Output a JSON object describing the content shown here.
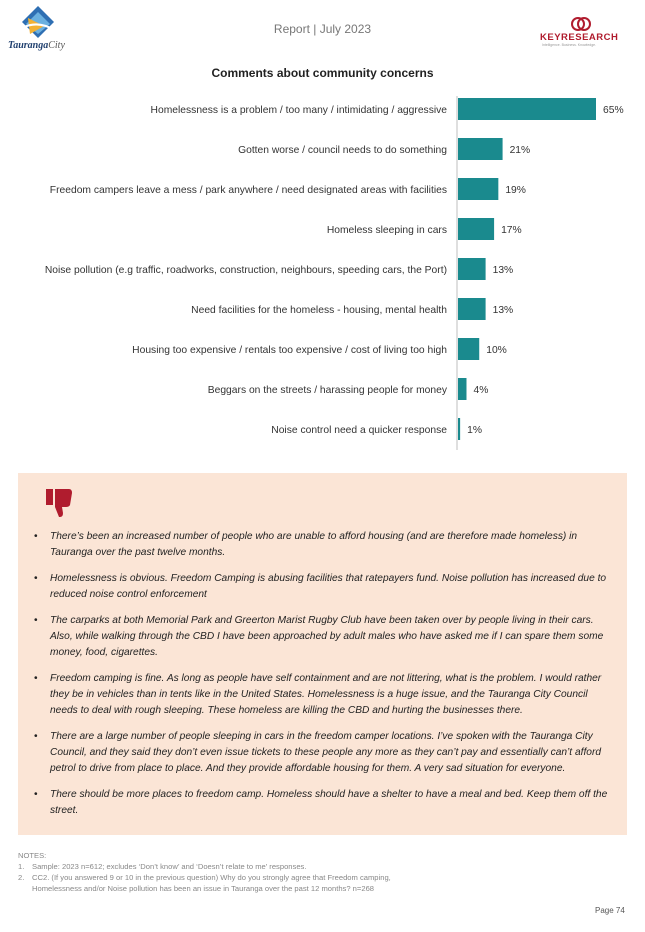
{
  "header": {
    "logo_text_main": "Tauranga",
    "logo_text_sub": "City",
    "report_label": "Report | July 2023",
    "brand_name": "KEYRESEARCH",
    "brand_tagline": "Intelligence. Business. Knowledge."
  },
  "colors": {
    "bar": "#1a8a8e",
    "panel_bg": "#fbe5d6",
    "thumb": "#b01c2e"
  },
  "chart_data": {
    "type": "bar",
    "orientation": "horizontal",
    "title": "Comments about community concerns",
    "categories": [
      "Homelessness is a problem / too many / intimidating / aggressive",
      "Gotten worse / council needs to do something",
      "Freedom campers leave a mess / park anywhere / need designated areas with facilities",
      "Homeless sleeping in cars",
      "Noise pollution (e.g traffic, roadworks, construction, neighbours, speeding cars, the Port)",
      "Need facilities for the homeless - housing, mental health",
      "Housing too expensive / rentals too expensive / cost of living too high",
      "Beggars on the streets / harassing people for money",
      "Noise control need a quicker response"
    ],
    "values": [
      65,
      21,
      19,
      17,
      13,
      13,
      10,
      4,
      1
    ],
    "value_labels": [
      "65%",
      "21%",
      "19%",
      "17%",
      "13%",
      "13%",
      "10%",
      "4%",
      "1%"
    ],
    "xlim": [
      0,
      70
    ],
    "grid": false,
    "legend": "none"
  },
  "comments": [
    "There’s been an increased number of people who are unable to afford housing (and are therefore made homeless) in Tauranga over the past twelve months.",
    "Homelessness is obvious. Freedom Camping is abusing facilities that ratepayers fund. Noise pollution has increased due to reduced noise control enforcement",
    "The carparks at both Memorial Park and Greerton Marist Rugby Club have been taken over by people living in their cars. Also, while walking through the CBD I have been approached by adult males who have asked me if I can spare them some money, food, cigarettes.",
    "Freedom camping is fine. As long as people have self containment and are not littering, what is the problem. I would rather they be in vehicles than in tents like in the United States. Homelessness is a huge issue, and the Tauranga City Council needs to deal with rough sleeping. These homeless are killing the CBD and hurting the businesses there.",
    "There are a large number of people sleeping in cars in the freedom camper locations. I’ve spoken with the Tauranga City Council, and they said they don’t even issue tickets to these people any more as they can’t pay and essentially can’t afford petrol to drive from place to place. And they provide affordable housing for them. A very sad situation for everyone.",
    "There should be more places to freedom camp. Homeless should have a shelter to have a meal and bed. Keep them off the street."
  ],
  "notes": {
    "heading": "NOTES:",
    "items": [
      {
        "num": "1.",
        "text": "Sample: 2023 n=612; excludes ‘Don’t know’ and ‘Doesn’t relate to me’ responses."
      },
      {
        "num": "2.",
        "text": "CC2. (If you answered 9 or 10 in the previous question) Why do you strongly agree that Freedom camping, Homelessness and/or Noise pollution has been an issue in Tauranga over the past 12 months? n=268"
      }
    ]
  },
  "page_label": "Page 74"
}
